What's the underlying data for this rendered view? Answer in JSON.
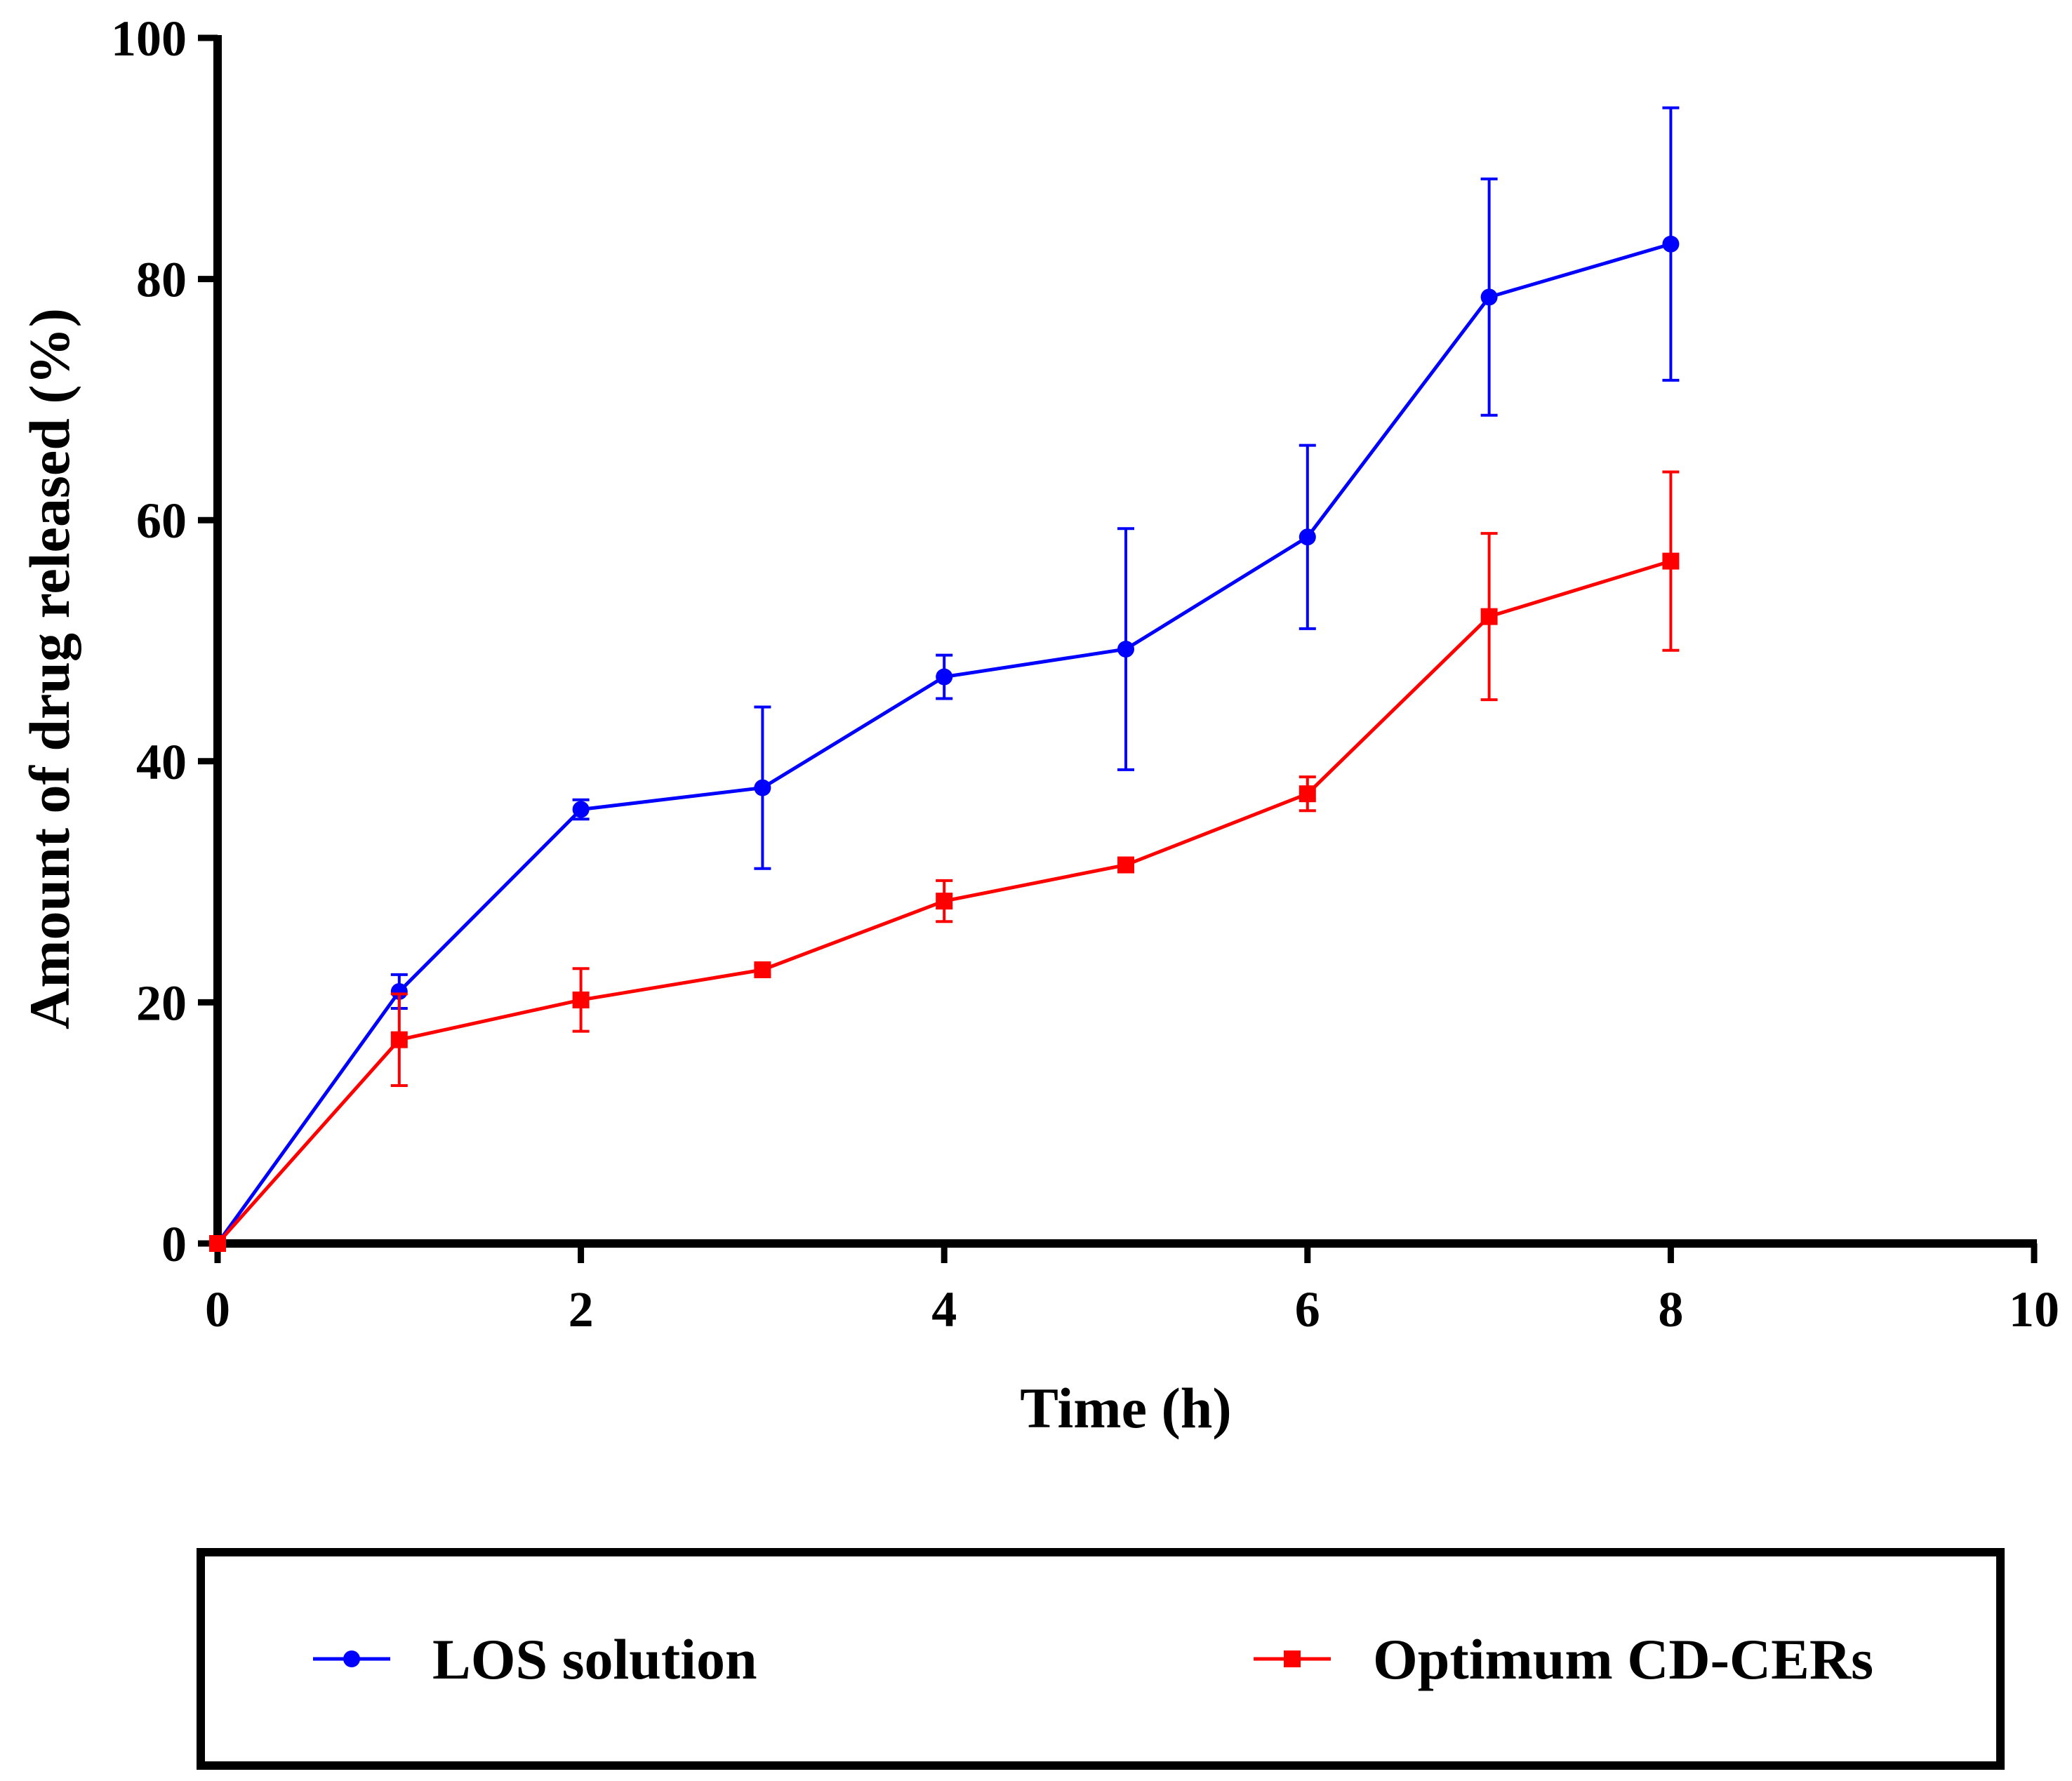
{
  "chart_data": {
    "type": "line",
    "title": "",
    "xlabel": "Time (h)",
    "ylabel": "Amount of drug released (%)",
    "xlim": [
      0,
      10
    ],
    "ylim": [
      0,
      100
    ],
    "xticks": [
      0,
      2,
      4,
      6,
      8,
      10
    ],
    "yticks": [
      0,
      20,
      40,
      60,
      80,
      100
    ],
    "xtick_labels": [
      "0",
      "2",
      "4",
      "6",
      "8",
      "10"
    ],
    "ytick_labels": [
      "0",
      "20",
      "40",
      "60",
      "80",
      "100"
    ],
    "grid": false,
    "legend_position": "bottom",
    "x": [
      0,
      1,
      2,
      3,
      4,
      5,
      6,
      7,
      8
    ],
    "series": [
      {
        "name": "LOS solution",
        "color": "#0000ff",
        "marker": "circle",
        "values": [
          0,
          20.9,
          36.0,
          37.8,
          47.0,
          49.3,
          58.6,
          78.5,
          82.9
        ],
        "error": [
          0,
          1.4,
          0.8,
          6.7,
          1.8,
          10.0,
          7.6,
          9.8,
          11.3
        ]
      },
      {
        "name": "Optimum CD-CERs",
        "color": "#ff0000",
        "marker": "square",
        "values": [
          0,
          16.9,
          20.2,
          22.7,
          28.4,
          31.4,
          37.3,
          52.0,
          56.6
        ],
        "error": [
          0,
          3.8,
          2.6,
          0.4,
          1.7,
          0.4,
          1.4,
          6.9,
          7.4
        ]
      }
    ]
  }
}
